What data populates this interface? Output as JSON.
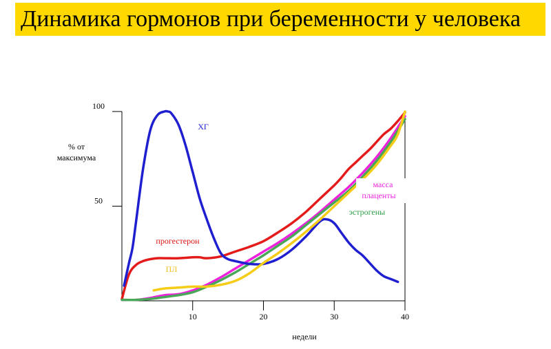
{
  "title": "Динамика гормонов при беременности у человека",
  "colors": {
    "title_bg": "#ffd800",
    "axis": "#000000"
  },
  "chart_data": {
    "type": "line",
    "xlabel": "недели",
    "ylabel": "% от максимума",
    "xlim": [
      0,
      40
    ],
    "ylim": [
      0,
      100
    ],
    "x_ticks": [
      10,
      20,
      30,
      40
    ],
    "y_ticks": [
      50,
      100
    ],
    "grid": false,
    "legend": "none",
    "series": [
      {
        "name": "ХГ",
        "color": "#1f1fd0",
        "label_color": "#2020cc",
        "x": [
          0.3,
          1,
          1.5,
          2,
          3,
          4,
          5,
          6,
          6.5,
          7,
          8,
          9,
          10,
          11,
          12,
          13,
          14,
          15,
          16,
          18,
          20,
          22,
          24,
          26,
          28,
          29,
          30,
          31,
          32,
          33,
          34,
          35,
          36,
          37,
          38,
          39
        ],
        "y": [
          8,
          20,
          28,
          42,
          70,
          90,
          98,
          100,
          100,
          99,
          93,
          82,
          68,
          54,
          43,
          33,
          25,
          22,
          21,
          19.5,
          19.5,
          22,
          27,
          34,
          42,
          43,
          41,
          36,
          31,
          27,
          24,
          20,
          16,
          13,
          11.5,
          10
        ]
      },
      {
        "name": "прогестерон",
        "color": "#e31b1b",
        "label_color": "#e01010",
        "x": [
          0,
          1,
          2,
          3,
          4,
          5,
          6,
          8,
          10,
          11,
          12,
          14,
          16,
          18,
          20,
          22,
          24,
          26,
          28,
          30,
          31,
          32,
          33,
          34,
          35,
          36,
          37,
          38,
          39,
          40
        ],
        "y": [
          1,
          14,
          19,
          21,
          22,
          22.5,
          22.5,
          22.5,
          23,
          23,
          22.5,
          23.5,
          26,
          28.5,
          31.5,
          36,
          41,
          47,
          54,
          61,
          65,
          69.5,
          73,
          76.5,
          80,
          84,
          88,
          91,
          95,
          99.5
        ]
      },
      {
        "name": "масса плаценты",
        "color": "#ee22dd",
        "label_color": "#ee22dd",
        "x": [
          0,
          2,
          4,
          6,
          8,
          10,
          12,
          14,
          16,
          18,
          20,
          22,
          24,
          26,
          28,
          30,
          32,
          34,
          36,
          38,
          40
        ],
        "y": [
          0.5,
          0.5,
          1.5,
          3,
          3.5,
          5.5,
          8.5,
          12.5,
          17,
          21.5,
          26,
          30.5,
          35.5,
          41,
          47,
          53.5,
          60,
          67.5,
          76,
          86,
          97.5
        ]
      },
      {
        "name": "эстрогены",
        "color": "#48a858",
        "label_color": "#2e9e48",
        "x": [
          0,
          2,
          4,
          6,
          8,
          10,
          12,
          14,
          16,
          18,
          20,
          22,
          24,
          26,
          28,
          30,
          32,
          34,
          36,
          38,
          40
        ],
        "y": [
          0.5,
          0.5,
          1,
          2,
          3,
          4.5,
          7.5,
          11,
          15,
          19.5,
          24,
          29,
          34,
          40,
          46,
          52,
          58,
          65.5,
          74,
          84,
          96
        ]
      },
      {
        "name": "ПЛ",
        "color": "#f5cd19",
        "label_color": "#f0c020",
        "x": [
          4.5,
          6,
          8,
          10,
          12,
          14,
          16,
          18,
          20,
          22,
          24,
          26,
          28,
          30,
          32,
          34,
          36,
          38,
          39,
          40
        ],
        "y": [
          5.5,
          6.5,
          7,
          7.5,
          7.5,
          8.5,
          10.5,
          14.5,
          20,
          25,
          30.5,
          36.5,
          43,
          50,
          57,
          64,
          72,
          82,
          88,
          100
        ]
      }
    ]
  }
}
